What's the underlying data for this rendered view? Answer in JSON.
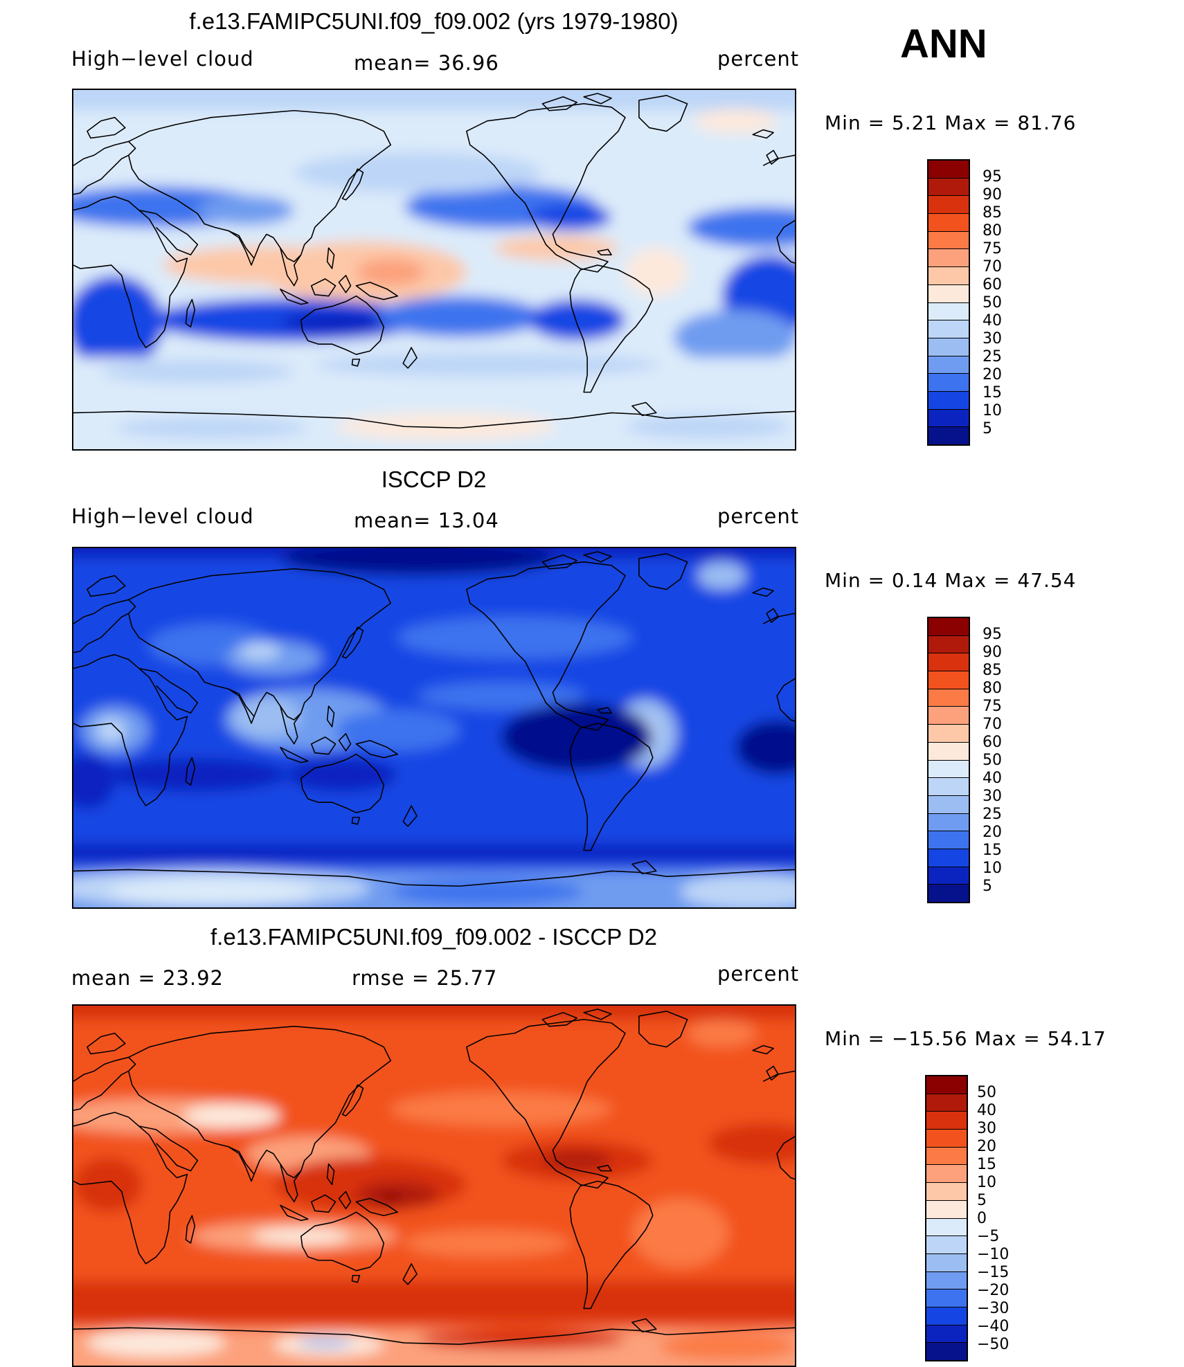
{
  "ann_label": "ANN",
  "panels": [
    {
      "title": "f.e13.FAMIPC5UNI.f09_f09.002 (yrs 1979-1980)",
      "left_label": "High−level cloud",
      "mid_label": "mean=   36.96",
      "right_label": "percent",
      "minmax": "Min =    5.21 Max =   81.76",
      "palette": "abs",
      "colorbar_labels": [
        "95",
        "90",
        "85",
        "80",
        "75",
        "70",
        "60",
        "50",
        "40",
        "30",
        "25",
        "20",
        "15",
        "10",
        "5"
      ]
    },
    {
      "title": "ISCCP D2",
      "left_label": "High−level cloud",
      "mid_label": "mean=   13.04",
      "right_label": "percent",
      "minmax": "Min =    0.14 Max =   47.54",
      "palette": "abs",
      "colorbar_labels": [
        "95",
        "90",
        "85",
        "80",
        "75",
        "70",
        "60",
        "50",
        "40",
        "30",
        "25",
        "20",
        "15",
        "10",
        "5"
      ]
    },
    {
      "title": "f.e13.FAMIPC5UNI.f09_f09.002 - ISCCP D2",
      "left_label": "mean =   23.92",
      "mid_label": "rmse =   25.77",
      "right_label": "percent",
      "minmax": "Min = −15.56 Max =   54.17",
      "palette": "diff",
      "colorbar_labels": [
        "50",
        "40",
        "30",
        "20",
        "15",
        "10",
        "5",
        "0",
        "−5",
        "−10",
        "−15",
        "−20",
        "−30",
        "−40",
        "−50"
      ]
    }
  ],
  "colors": {
    "palette_top_to_bottom": [
      "#8b0000",
      "#b01a0a",
      "#d8320f",
      "#f2521e",
      "#fb7a45",
      "#fca17c",
      "#fdc8a8",
      "#fde9dc",
      "#dcebfa",
      "#bdd6f7",
      "#9bbdf2",
      "#6f9cf0",
      "#3d73ee",
      "#1546e4",
      "#0b24c0",
      "#06118c"
    ],
    "continent_outline": "#000000",
    "frame": "#000000"
  }
}
